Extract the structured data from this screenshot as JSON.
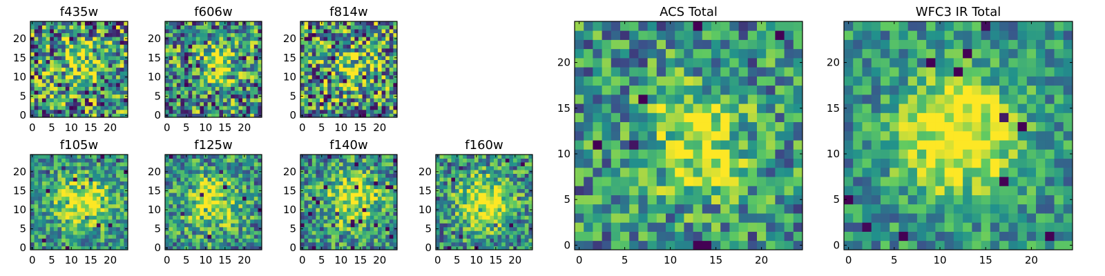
{
  "figure": {
    "description_colormap": "viridis",
    "colors": {
      "colormap_stops": [
        "#440154",
        "#3b528b",
        "#21918c",
        "#5ec962",
        "#fde725"
      ]
    }
  },
  "chart_data": [
    {
      "type": "heatmap",
      "title": "f435w",
      "grid_size": 25,
      "x_ticks": [
        0,
        5,
        10,
        15,
        20
      ],
      "y_ticks": [
        0,
        5,
        10,
        15,
        20
      ],
      "xlim": [
        -0.5,
        24.5
      ],
      "ylim": [
        -0.5,
        24.5
      ],
      "noise": 0.6,
      "peak": 0.35,
      "center": [
        13,
        14
      ],
      "width": 4,
      "seed": 11
    },
    {
      "type": "heatmap",
      "title": "f606w",
      "grid_size": 25,
      "x_ticks": [
        0,
        5,
        10,
        15,
        20
      ],
      "y_ticks": [
        0,
        5,
        10,
        15,
        20
      ],
      "xlim": [
        -0.5,
        24.5
      ],
      "ylim": [
        -0.5,
        24.5
      ],
      "noise": 0.55,
      "peak": 0.45,
      "center": [
        13,
        13
      ],
      "width": 3.5,
      "seed": 23
    },
    {
      "type": "heatmap",
      "title": "f814w",
      "grid_size": 25,
      "x_ticks": [
        0,
        5,
        10,
        15,
        20
      ],
      "y_ticks": [
        0,
        5,
        10,
        15,
        20
      ],
      "xlim": [
        -0.5,
        24.5
      ],
      "ylim": [
        -0.5,
        24.5
      ],
      "noise": 0.6,
      "peak": 0.35,
      "center": [
        13,
        12
      ],
      "width": 4,
      "seed": 37
    },
    {
      "type": "heatmap",
      "title": "f105w",
      "grid_size": 25,
      "x_ticks": [
        0,
        5,
        10,
        15,
        20
      ],
      "y_ticks": [
        0,
        5,
        10,
        15,
        20
      ],
      "xlim": [
        -0.5,
        24.5
      ],
      "ylim": [
        -0.5,
        24.5
      ],
      "noise": 0.35,
      "peak": 0.5,
      "center": [
        13,
        12
      ],
      "width": 5,
      "seed": 41
    },
    {
      "type": "heatmap",
      "title": "f125w",
      "grid_size": 25,
      "x_ticks": [
        0,
        5,
        10,
        15,
        20
      ],
      "y_ticks": [
        0,
        5,
        10,
        15,
        20
      ],
      "xlim": [
        -0.5,
        24.5
      ],
      "ylim": [
        -0.5,
        24.5
      ],
      "noise": 0.4,
      "peak": 0.45,
      "center": [
        12,
        12
      ],
      "width": 5,
      "seed": 53
    },
    {
      "type": "heatmap",
      "title": "f140w",
      "grid_size": 25,
      "x_ticks": [
        0,
        5,
        10,
        15,
        20
      ],
      "y_ticks": [
        0,
        5,
        10,
        15,
        20
      ],
      "xlim": [
        -0.5,
        24.5
      ],
      "ylim": [
        -0.5,
        24.5
      ],
      "noise": 0.4,
      "peak": 0.45,
      "center": [
        13,
        13
      ],
      "width": 5,
      "seed": 67
    },
    {
      "type": "heatmap",
      "title": "f160w",
      "grid_size": 25,
      "x_ticks": [
        0,
        5,
        10,
        15,
        20
      ],
      "y_ticks": [
        0,
        5,
        10,
        15,
        20
      ],
      "xlim": [
        -0.5,
        24.5
      ],
      "ylim": [
        -0.5,
        24.5
      ],
      "noise": 0.4,
      "peak": 0.55,
      "center": [
        12,
        12
      ],
      "width": 4.5,
      "seed": 79
    },
    {
      "type": "heatmap",
      "title": "ACS Total",
      "grid_size": 25,
      "x_ticks": [
        0,
        5,
        10,
        15,
        20
      ],
      "y_ticks": [
        0,
        5,
        10,
        15,
        20
      ],
      "xlim": [
        -0.5,
        24.5
      ],
      "ylim": [
        -0.5,
        24.5
      ],
      "noise": 0.4,
      "peak": 0.45,
      "center": [
        13,
        11
      ],
      "width": 4,
      "seed": 97
    },
    {
      "type": "heatmap",
      "title": "WFC3 IR Total",
      "grid_size": 25,
      "x_ticks": [
        0,
        5,
        10,
        15,
        20
      ],
      "y_ticks": [
        0,
        5,
        10,
        15,
        20
      ],
      "xlim": [
        -0.5,
        24.5
      ],
      "ylim": [
        -0.5,
        24.5
      ],
      "noise": 0.3,
      "peak": 0.6,
      "center": [
        12,
        12
      ],
      "width": 4.5,
      "seed": 113
    }
  ]
}
